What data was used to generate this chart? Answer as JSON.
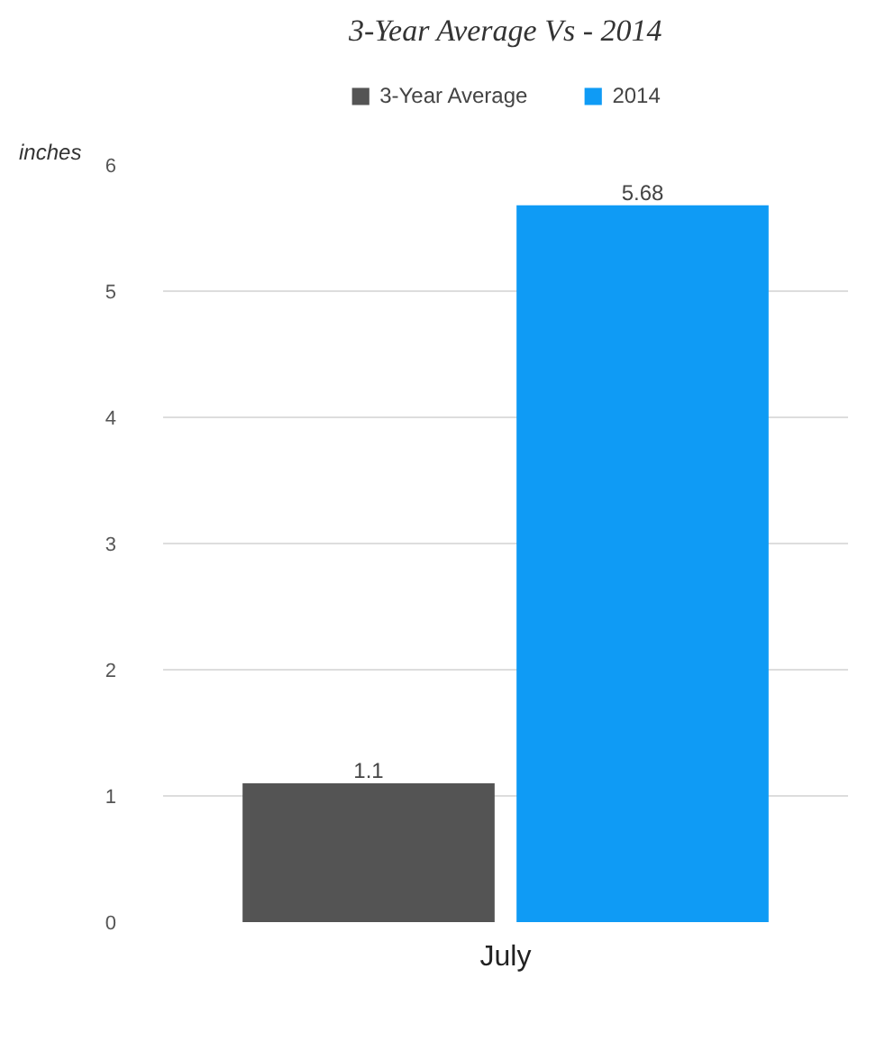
{
  "chart_data": {
    "type": "bar",
    "title": "3-Year Average Vs - 2014",
    "ylabel": "inches",
    "categories": [
      "July"
    ],
    "series": [
      {
        "name": "3-Year Average",
        "color": "#545454",
        "values": [
          1.1
        ]
      },
      {
        "name": "2014",
        "color": "#0f9bf5",
        "values": [
          5.68
        ]
      }
    ],
    "ylim": [
      0,
      6
    ],
    "yticks": [
      0,
      1,
      2,
      3,
      4,
      5,
      6
    ],
    "grid": "y",
    "legend": "top",
    "data_labels": true
  }
}
